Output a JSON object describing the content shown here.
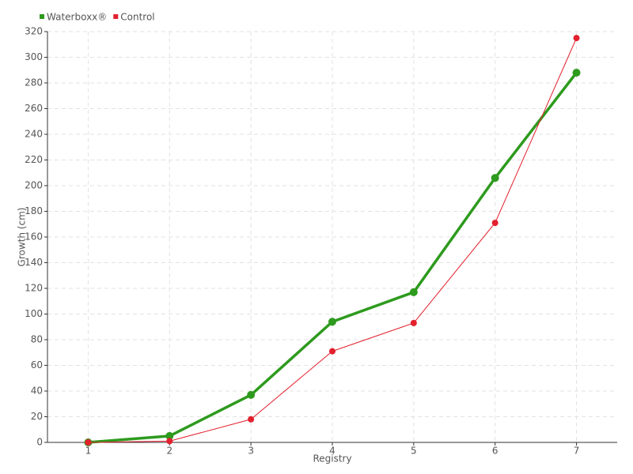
{
  "chart_data": {
    "type": "line",
    "x_label": "Registry",
    "y_label": "Growth (cm)",
    "categories": [
      "1",
      "2",
      "3",
      "4",
      "5",
      "6",
      "7"
    ],
    "series": [
      {
        "name": "Waterboxx®",
        "color": "#2e9a1e",
        "values": [
          0,
          5,
          37,
          94,
          117,
          206,
          288
        ]
      },
      {
        "name": "Control",
        "color": "#e3202e",
        "values": [
          0,
          1,
          18,
          71,
          93,
          171,
          315
        ]
      }
    ],
    "ylim": [
      0,
      320
    ],
    "yticks": [
      0,
      20,
      40,
      60,
      80,
      100,
      120,
      140,
      160,
      180,
      200,
      220,
      240,
      260,
      280,
      300,
      320
    ],
    "grid": true,
    "legend": "top-left"
  }
}
